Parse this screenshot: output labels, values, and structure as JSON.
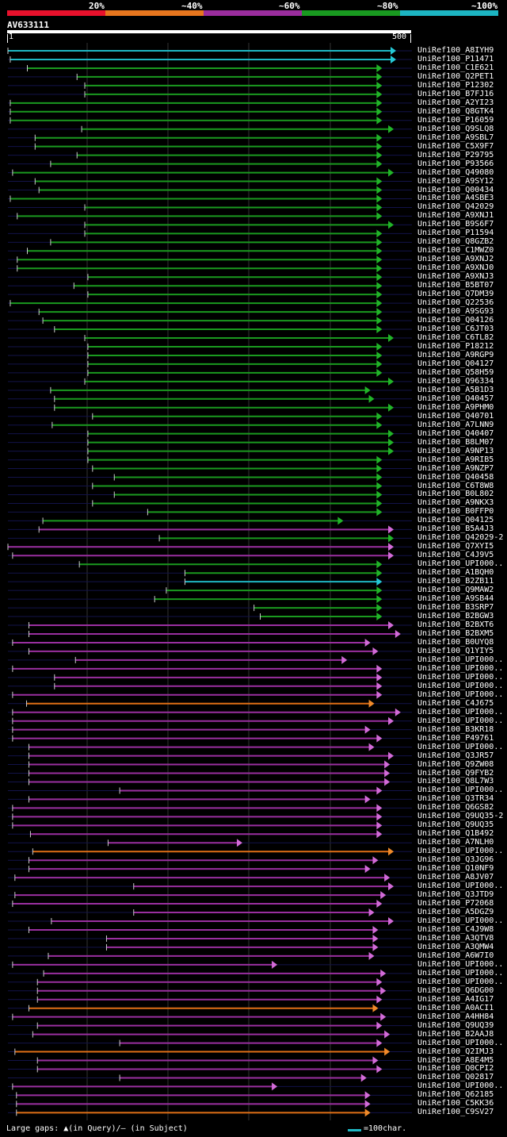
{
  "legend": {
    "labels": [
      "20%",
      "~40%",
      "~60%",
      "~80%",
      "~100%"
    ],
    "colors": [
      "#e8112c",
      "#e7761e",
      "#9b2d9e",
      "#199a20",
      "#1cb5c2"
    ]
  },
  "query": {
    "name": "AV633111",
    "length": 500,
    "start_label": "1",
    "end_label": "500"
  },
  "footer": {
    "gaps_text": "Large gaps: ▲(in Query)/— (in Subject)",
    "scale_text": "=100char."
  },
  "hits": [
    {
      "label": "UniRef100_A8IYH9",
      "color": "cyan",
      "start": 0,
      "end": 500
    },
    {
      "label": "UniRef100_P11471",
      "color": "cyan",
      "start": 3,
      "end": 500
    },
    {
      "label": "UniRef100_C1E621",
      "color": "green",
      "start": 25,
      "end": 482
    },
    {
      "label": "UniRef100_Q2PET1",
      "color": "green",
      "start": 89,
      "end": 482
    },
    {
      "label": "UniRef100_P12302",
      "color": "green",
      "start": 99,
      "end": 482
    },
    {
      "label": "UniRef100_B7FJ16",
      "color": "green",
      "start": 99,
      "end": 482
    },
    {
      "label": "UniRef100_A2YI23",
      "color": "green",
      "start": 3,
      "end": 482
    },
    {
      "label": "UniRef100_Q8GTK4",
      "color": "green",
      "start": 3,
      "end": 482
    },
    {
      "label": "UniRef100_P16059",
      "color": "green",
      "start": 3,
      "end": 482
    },
    {
      "label": "UniRef100_Q9SLQ8",
      "color": "green",
      "start": 95,
      "end": 497
    },
    {
      "label": "UniRef100_A9SBL7",
      "color": "green",
      "start": 35,
      "end": 482
    },
    {
      "label": "UniRef100_C5X9F7",
      "color": "green",
      "start": 35,
      "end": 482
    },
    {
      "label": "UniRef100_P29795",
      "color": "green",
      "start": 89,
      "end": 482
    },
    {
      "label": "UniRef100_P93566",
      "color": "green",
      "start": 55,
      "end": 482
    },
    {
      "label": "UniRef100_Q49080",
      "color": "green",
      "start": 6,
      "end": 497
    },
    {
      "label": "UniRef100_A9SY12",
      "color": "green",
      "start": 35,
      "end": 482
    },
    {
      "label": "UniRef100_Q00434",
      "color": "green",
      "start": 40,
      "end": 482
    },
    {
      "label": "UniRef100_A4SBE3",
      "color": "green",
      "start": 3,
      "end": 482
    },
    {
      "label": "UniRef100_Q42029",
      "color": "green",
      "start": 99,
      "end": 482
    },
    {
      "label": "UniRef100_A9XNJ1",
      "color": "green",
      "start": 12,
      "end": 482
    },
    {
      "label": "UniRef100_B9S6F7",
      "color": "green",
      "start": 99,
      "end": 497
    },
    {
      "label": "UniRef100_P11594",
      "color": "green",
      "start": 99,
      "end": 482
    },
    {
      "label": "UniRef100_Q8GZB2",
      "color": "green",
      "start": 55,
      "end": 482
    },
    {
      "label": "UniRef100_C1MWZ0",
      "color": "green",
      "start": 25,
      "end": 482
    },
    {
      "label": "UniRef100_A9XNJ2",
      "color": "green",
      "start": 12,
      "end": 482
    },
    {
      "label": "UniRef100_A9XNJ0",
      "color": "green",
      "start": 12,
      "end": 482
    },
    {
      "label": "UniRef100_A9XNJ3",
      "color": "green",
      "start": 103,
      "end": 482
    },
    {
      "label": "UniRef100_B5BT07",
      "color": "green",
      "start": 85,
      "end": 482
    },
    {
      "label": "UniRef100_Q7DM39",
      "color": "green",
      "start": 103,
      "end": 482
    },
    {
      "label": "UniRef100_Q22536",
      "color": "green",
      "start": 3,
      "end": 482
    },
    {
      "label": "UniRef100_A9SG93",
      "color": "green",
      "start": 40,
      "end": 482
    },
    {
      "label": "UniRef100_Q04126",
      "color": "green",
      "start": 45,
      "end": 482
    },
    {
      "label": "UniRef100_C6JT03",
      "color": "green",
      "start": 60,
      "end": 482
    },
    {
      "label": "UniRef100_C6TL82",
      "color": "green",
      "start": 99,
      "end": 497
    },
    {
      "label": "UniRef100_P18212",
      "color": "green",
      "start": 103,
      "end": 482
    },
    {
      "label": "UniRef100_A9RGP9",
      "color": "green",
      "start": 103,
      "end": 482
    },
    {
      "label": "UniRef100_Q04127",
      "color": "green",
      "start": 103,
      "end": 482
    },
    {
      "label": "UniRef100_Q58H59",
      "color": "green",
      "start": 103,
      "end": 482
    },
    {
      "label": "UniRef100_Q96334",
      "color": "green",
      "start": 99,
      "end": 497
    },
    {
      "label": "UniRef100_A5B1D3",
      "color": "green",
      "start": 55,
      "end": 467
    },
    {
      "label": "UniRef100_Q40457",
      "color": "green",
      "start": 60,
      "end": 472
    },
    {
      "label": "UniRef100_A9PHM0",
      "color": "green",
      "start": 60,
      "end": 497
    },
    {
      "label": "UniRef100_Q40701",
      "color": "green",
      "start": 109,
      "end": 482
    },
    {
      "label": "UniRef100_A7LNN9",
      "color": "green",
      "start": 57,
      "end": 482
    },
    {
      "label": "UniRef100_Q40407",
      "color": "green",
      "start": 103,
      "end": 497
    },
    {
      "label": "UniRef100_B8LM07",
      "color": "green",
      "start": 103,
      "end": 497
    },
    {
      "label": "UniRef100_A9NP13",
      "color": "green",
      "start": 103,
      "end": 497
    },
    {
      "label": "UniRef100_A9RIB5",
      "color": "green",
      "start": 103,
      "end": 482
    },
    {
      "label": "UniRef100_A9NZP7",
      "color": "green",
      "start": 109,
      "end": 482
    },
    {
      "label": "UniRef100_Q40458",
      "color": "green",
      "start": 137,
      "end": 482
    },
    {
      "label": "UniRef100_C6T8W8",
      "color": "green",
      "start": 109,
      "end": 482
    },
    {
      "label": "UniRef100_B0L802",
      "color": "green",
      "start": 137,
      "end": 482
    },
    {
      "label": "UniRef100_A9NKX3",
      "color": "green",
      "start": 109,
      "end": 482
    },
    {
      "label": "UniRef100_B0FFP0",
      "color": "green",
      "start": 180,
      "end": 482
    },
    {
      "label": "UniRef100_Q04125",
      "color": "green",
      "start": 45,
      "end": 432
    },
    {
      "label": "UniRef100_B5A4J3",
      "color": "magenta",
      "start": 40,
      "end": 497
    },
    {
      "label": "UniRef100_Q42029-2",
      "color": "green",
      "start": 195,
      "end": 497
    },
    {
      "label": "UniRef100_Q7XYI5",
      "color": "magenta",
      "start": 0,
      "end": 497
    },
    {
      "label": "UniRef100_C4J9V5",
      "color": "magenta",
      "start": 6,
      "end": 497
    },
    {
      "label": "UniRef100_UPI000..",
      "color": "green",
      "start": 92,
      "end": 482
    },
    {
      "label": "UniRef100_A1BQH0",
      "color": "green",
      "start": 228,
      "end": 482
    },
    {
      "label": "UniRef100_B2ZB11",
      "color": "cyan",
      "start": 228,
      "end": 482
    },
    {
      "label": "UniRef100_Q9MAW2",
      "color": "green",
      "start": 204,
      "end": 482
    },
    {
      "label": "UniRef100_A9SB44",
      "color": "green",
      "start": 189,
      "end": 482
    },
    {
      "label": "UniRef100_B3SRP7",
      "color": "green",
      "start": 317,
      "end": 482
    },
    {
      "label": "UniRef100_B2BGW3",
      "color": "green",
      "start": 325,
      "end": 482
    },
    {
      "label": "UniRef100_B2BXT6",
      "color": "magenta",
      "start": 27,
      "end": 497
    },
    {
      "label": "UniRef100_B2BXM5",
      "color": "magenta",
      "start": 27,
      "end": 506
    },
    {
      "label": "UniRef100_B0UYQ8",
      "color": "magenta",
      "start": 6,
      "end": 467
    },
    {
      "label": "UniRef100_Q1YIY5",
      "color": "magenta",
      "start": 27,
      "end": 477
    },
    {
      "label": "UniRef100_UPI000..",
      "color": "magenta",
      "start": 87,
      "end": 437
    },
    {
      "label": "UniRef100_UPI000..",
      "color": "magenta",
      "start": 6,
      "end": 482
    },
    {
      "label": "UniRef100_UPI000..",
      "color": "magenta",
      "start": 60,
      "end": 482
    },
    {
      "label": "UniRef100_UPI000..",
      "color": "magenta",
      "start": 60,
      "end": 482
    },
    {
      "label": "UniRef100_UPI000..",
      "color": "magenta",
      "start": 6,
      "end": 482
    },
    {
      "label": "UniRef100_C4J675",
      "color": "orange",
      "start": 24,
      "end": 472
    },
    {
      "label": "UniRef100_UPI000..",
      "color": "magenta",
      "start": 6,
      "end": 506
    },
    {
      "label": "UniRef100_UPI000..",
      "color": "magenta",
      "start": 6,
      "end": 497
    },
    {
      "label": "UniRef100_B3KR18",
      "color": "magenta",
      "start": 6,
      "end": 467
    },
    {
      "label": "UniRef100_P49761",
      "color": "magenta",
      "start": 6,
      "end": 482
    },
    {
      "label": "UniRef100_UPI000..",
      "color": "magenta",
      "start": 27,
      "end": 472
    },
    {
      "label": "UniRef100_Q3JR57",
      "color": "magenta",
      "start": 27,
      "end": 497
    },
    {
      "label": "UniRef100_Q9ZW08",
      "color": "magenta",
      "start": 27,
      "end": 492
    },
    {
      "label": "UniRef100_Q9FYB2",
      "color": "magenta",
      "start": 27,
      "end": 492
    },
    {
      "label": "UniRef100_Q8L7W3",
      "color": "magenta",
      "start": 27,
      "end": 492
    },
    {
      "label": "UniRef100_UPI000..",
      "color": "magenta",
      "start": 144,
      "end": 482
    },
    {
      "label": "UniRef100_Q3TR34",
      "color": "magenta",
      "start": 27,
      "end": 467
    },
    {
      "label": "UniRef100_Q6GS82",
      "color": "magenta",
      "start": 6,
      "end": 482
    },
    {
      "label": "UniRef100_Q9UQ35-2",
      "color": "magenta",
      "start": 6,
      "end": 482
    },
    {
      "label": "UniRef100_Q9UQ35",
      "color": "magenta",
      "start": 6,
      "end": 482
    },
    {
      "label": "UniRef100_Q1B492",
      "color": "magenta",
      "start": 29,
      "end": 482
    },
    {
      "label": "UniRef100_A7NLH0",
      "color": "magenta",
      "start": 129,
      "end": 302
    },
    {
      "label": "UniRef100_UPI000..",
      "color": "orange",
      "start": 32,
      "end": 497
    },
    {
      "label": "UniRef100_Q3JG96",
      "color": "magenta",
      "start": 27,
      "end": 477
    },
    {
      "label": "UniRef100_Q10NF9",
      "color": "magenta",
      "start": 27,
      "end": 467
    },
    {
      "label": "UniRef100_A8JV07",
      "color": "magenta",
      "start": 9,
      "end": 492
    },
    {
      "label": "UniRef100_UPI000..",
      "color": "magenta",
      "start": 162,
      "end": 497
    },
    {
      "label": "UniRef100_Q3JTD9",
      "color": "magenta",
      "start": 9,
      "end": 487
    },
    {
      "label": "UniRef100_P72068",
      "color": "magenta",
      "start": 6,
      "end": 482
    },
    {
      "label": "UniRef100_A5DGZ9",
      "color": "magenta",
      "start": 162,
      "end": 472
    },
    {
      "label": "UniRef100_UPI000..",
      "color": "magenta",
      "start": 56,
      "end": 497
    },
    {
      "label": "UniRef100_C4J9W8",
      "color": "magenta",
      "start": 27,
      "end": 477
    },
    {
      "label": "UniRef100_A3QTV8",
      "color": "magenta",
      "start": 127,
      "end": 477
    },
    {
      "label": "UniRef100_A3QMW4",
      "color": "magenta",
      "start": 127,
      "end": 477
    },
    {
      "label": "UniRef100_A6W7I0",
      "color": "magenta",
      "start": 52,
      "end": 472
    },
    {
      "label": "UniRef100_UPI000..",
      "color": "magenta",
      "start": 6,
      "end": 347
    },
    {
      "label": "UniRef100_UPI000..",
      "color": "magenta",
      "start": 46,
      "end": 487
    },
    {
      "label": "UniRef100_UPI000..",
      "color": "magenta",
      "start": 38,
      "end": 482
    },
    {
      "label": "UniRef100_Q6DG00",
      "color": "magenta",
      "start": 38,
      "end": 487
    },
    {
      "label": "UniRef100_A4IG17",
      "color": "magenta",
      "start": 38,
      "end": 482
    },
    {
      "label": "UniRef100_A0ACI1",
      "color": "orange",
      "start": 27,
      "end": 477
    },
    {
      "label": "UniRef100_A4HH84",
      "color": "magenta",
      "start": 6,
      "end": 487
    },
    {
      "label": "UniRef100_Q9UQ39",
      "color": "magenta",
      "start": 38,
      "end": 482
    },
    {
      "label": "UniRef100_B2AAJ8",
      "color": "magenta",
      "start": 32,
      "end": 492
    },
    {
      "label": "UniRef100_UPI000..",
      "color": "magenta",
      "start": 144,
      "end": 482
    },
    {
      "label": "UniRef100_Q2IMJ3",
      "color": "orange",
      "start": 9,
      "end": 492
    },
    {
      "label": "UniRef100_A8E4M5",
      "color": "magenta",
      "start": 38,
      "end": 477
    },
    {
      "label": "UniRef100_Q0CPI2",
      "color": "magenta",
      "start": 38,
      "end": 482
    },
    {
      "label": "UniRef100_Q02817",
      "color": "magenta",
      "start": 144,
      "end": 462
    },
    {
      "label": "UniRef100_UPI000..",
      "color": "magenta",
      "start": 6,
      "end": 347
    },
    {
      "label": "UniRef100_Q62185",
      "color": "magenta",
      "start": 11,
      "end": 467
    },
    {
      "label": "UniRef100_C5KK36",
      "color": "magenta",
      "start": 11,
      "end": 467
    },
    {
      "label": "UniRef100_C9SV27",
      "color": "orange",
      "start": 11,
      "end": 467
    }
  ]
}
